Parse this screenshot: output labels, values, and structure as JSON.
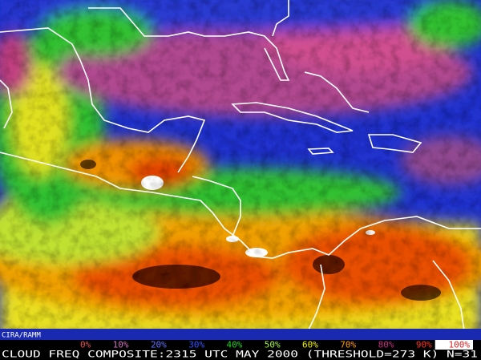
{
  "credit": "CIRA/RAMM",
  "caption": "CLOUD FREQ COMPOSITE:2315 UTC MAY 2000 (THRESHOLD=273 K) N=31",
  "legend": [
    {
      "label": "0%",
      "color": "#e05050",
      "background": "#000000"
    },
    {
      "label": "10%",
      "color": "#d070c0",
      "background": "#000000"
    },
    {
      "label": "20%",
      "color": "#6070ff",
      "background": "#000000"
    },
    {
      "label": "30%",
      "color": "#3050ff",
      "background": "#000000"
    },
    {
      "label": "40%",
      "color": "#20d020",
      "background": "#000000"
    },
    {
      "label": "50%",
      "color": "#a0f040",
      "background": "#000000"
    },
    {
      "label": "60%",
      "color": "#f0f000",
      "background": "#000000"
    },
    {
      "label": "70%",
      "color": "#ff9a00",
      "background": "#000000"
    },
    {
      "label": "80%",
      "color": "#c03080",
      "background": "#000000"
    },
    {
      "label": "90%",
      "color": "#ff3020",
      "background": "#000000"
    },
    {
      "label": "100%",
      "color": "#e02020",
      "background": "#ffffff"
    }
  ]
}
